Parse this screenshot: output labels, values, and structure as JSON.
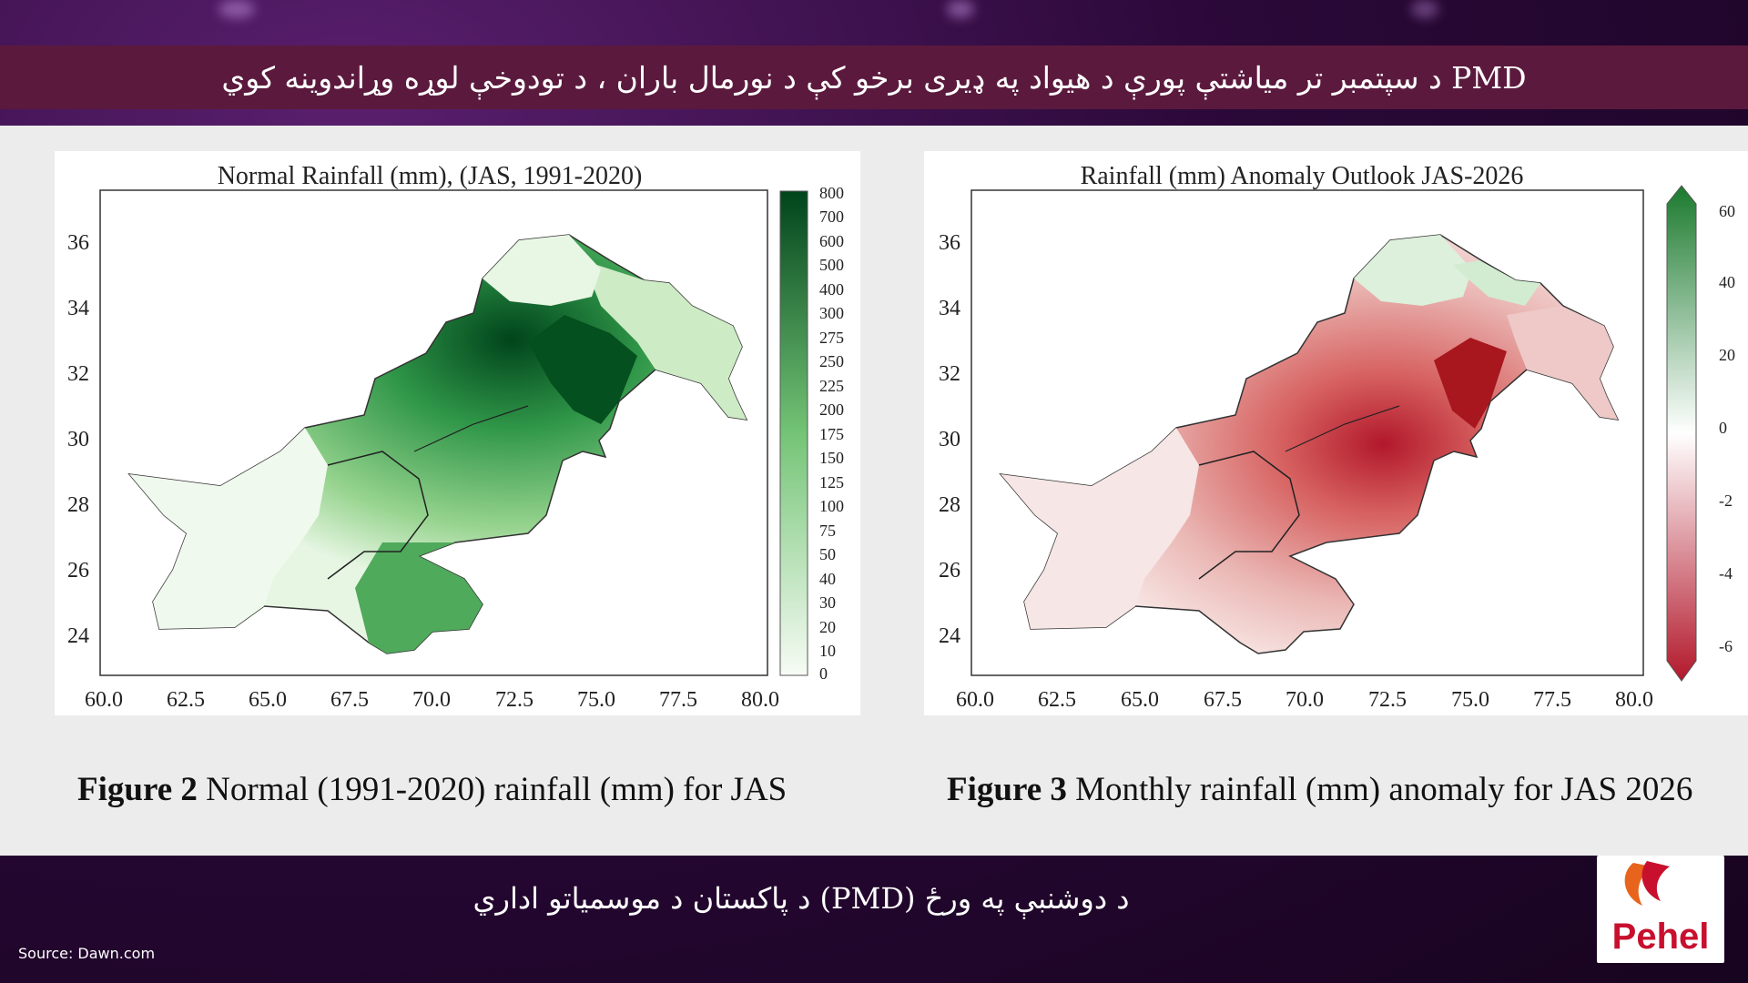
{
  "headline": "PMD د سپتمبر تر میاشتې پورې د هیواد په ډیری برخو کې د نورمال باران ، د تودوخې لوړه وړاندوینه کوي",
  "left_map": {
    "title": "Normal Rainfall (mm), (JAS, 1991-2020)",
    "x_ticks": [
      "60.0",
      "62.5",
      "65.0",
      "67.5",
      "70.0",
      "72.5",
      "75.0",
      "77.5",
      "80.0"
    ],
    "y_ticks": [
      "36",
      "34",
      "32",
      "30",
      "28",
      "26",
      "24"
    ],
    "colorbar_ticks": [
      "800",
      "700",
      "600",
      "500",
      "400",
      "300",
      "275",
      "250",
      "225",
      "200",
      "175",
      "150",
      "125",
      "100",
      "75",
      "50",
      "40",
      "30",
      "20",
      "10",
      "0"
    ],
    "colors": {
      "low": "#f2faf0",
      "mid": "#74c476",
      "high": "#00441b"
    }
  },
  "right_map": {
    "title": "Rainfall (mm) Anomaly Outlook  JAS-2026",
    "x_ticks": [
      "60.0",
      "62.5",
      "65.0",
      "67.5",
      "70.0",
      "72.5",
      "75.0",
      "77.5",
      "80.0"
    ],
    "y_ticks": [
      "36",
      "34",
      "32",
      "30",
      "28",
      "26",
      "24"
    ],
    "colorbar_ticks": [
      "60",
      "40",
      "20",
      "0",
      "-2",
      "-4",
      "-6"
    ],
    "colors": {
      "positive": "#1b7a2e",
      "neutral": "#ffffff",
      "negative": "#b2182b"
    }
  },
  "caption_left": {
    "label": "Figure 2",
    "text": " Normal (1991-2020) rainfall (mm) for JAS"
  },
  "caption_right": {
    "label": "Figure 3",
    "text": " Monthly rainfall (mm) anomaly for JAS 2026"
  },
  "bottom_caption": "د دوشنبې په ورځ (PMD) د پاکستان د موسمیاتو اداري",
  "source": "Source: Dawn.com",
  "logo_text": "Pehel"
}
